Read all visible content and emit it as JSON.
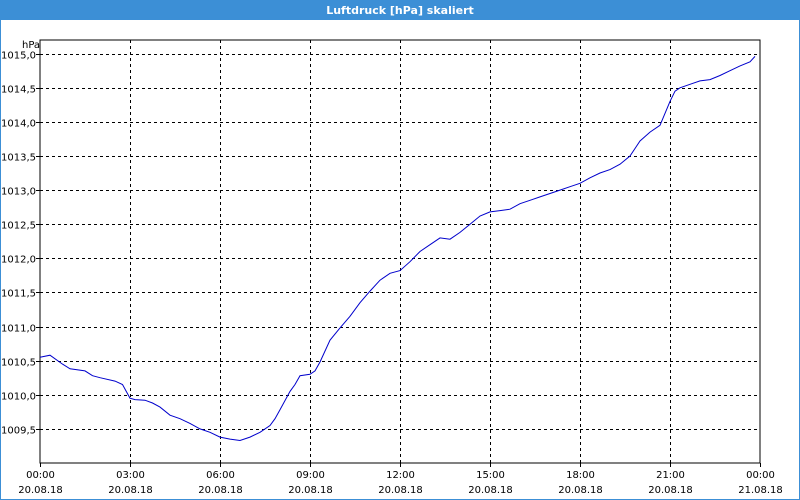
{
  "window": {
    "title": "Luftdruck [hPa] skaliert"
  },
  "chart_data": {
    "type": "line",
    "title": "Luftdruck [hPa] skaliert",
    "ylabel": "hPa",
    "xlabel": "",
    "ylim": [
      1009.0,
      1015.2
    ],
    "xlim": [
      "2018-08-20 00:00",
      "2018-08-21 00:00"
    ],
    "grid": true,
    "line_color": "#0000cc",
    "y_ticks": [
      "1009,5",
      "1010,0",
      "1010,5",
      "1011,0",
      "1011,5",
      "1012,0",
      "1012,5",
      "1013,0",
      "1013,5",
      "1014,0",
      "1014,5",
      "1015,0"
    ],
    "y_tick_values": [
      1009.5,
      1010.0,
      1010.5,
      1011.0,
      1011.5,
      1012.0,
      1012.5,
      1013.0,
      1013.5,
      1014.0,
      1014.5,
      1015.0
    ],
    "x_ticks": [
      {
        "time": "00:00",
        "date": "20.08.18"
      },
      {
        "time": "03:00",
        "date": "20.08.18"
      },
      {
        "time": "06:00",
        "date": "20.08.18"
      },
      {
        "time": "09:00",
        "date": "20.08.18"
      },
      {
        "time": "12:00",
        "date": "20.08.18"
      },
      {
        "time": "15:00",
        "date": "20.08.18"
      },
      {
        "time": "18:00",
        "date": "20.08.18"
      },
      {
        "time": "21:00",
        "date": "20.08.18"
      },
      {
        "time": "00:00",
        "date": "21.08.18"
      }
    ],
    "series": [
      {
        "x": [
          "00:00",
          "00:20",
          "00:45",
          "01:00",
          "01:30",
          "01:45",
          "02:00",
          "02:30",
          "02:45",
          "03:00",
          "03:10",
          "03:30",
          "03:45",
          "04:00",
          "04:20",
          "04:40",
          "05:00",
          "05:20",
          "05:40",
          "06:00",
          "06:20",
          "06:40",
          "07:00",
          "07:20",
          "07:40",
          "07:50",
          "08:00",
          "08:20",
          "08:30",
          "08:40",
          "09:00",
          "09:10",
          "09:20",
          "09:40",
          "10:00",
          "10:20",
          "10:40",
          "11:00",
          "11:20",
          "11:40",
          "12:00",
          "12:20",
          "12:40",
          "13:00",
          "13:20",
          "13:40",
          "14:00",
          "14:20",
          "14:40",
          "15:00",
          "15:20",
          "15:40",
          "16:00",
          "16:20",
          "16:40",
          "17:00",
          "17:20",
          "17:40",
          "18:00",
          "18:20",
          "18:40",
          "19:00",
          "19:20",
          "19:40",
          "20:00",
          "20:20",
          "20:40",
          "21:00",
          "21:10",
          "21:20",
          "21:40",
          "22:00",
          "22:20",
          "22:40",
          "23:00",
          "23:20",
          "23:40",
          "23:50"
        ],
        "y": [
          1010.55,
          1010.58,
          1010.45,
          1010.38,
          1010.35,
          1010.28,
          1010.25,
          1010.2,
          1010.15,
          1009.95,
          1009.93,
          1009.92,
          1009.88,
          1009.82,
          1009.7,
          1009.65,
          1009.58,
          1009.5,
          1009.45,
          1009.38,
          1009.35,
          1009.33,
          1009.38,
          1009.45,
          1009.55,
          1009.65,
          1009.78,
          1010.05,
          1010.15,
          1010.28,
          1010.3,
          1010.35,
          1010.48,
          1010.8,
          1010.98,
          1011.15,
          1011.35,
          1011.52,
          1011.68,
          1011.78,
          1011.82,
          1011.95,
          1012.1,
          1012.2,
          1012.3,
          1012.28,
          1012.38,
          1012.5,
          1012.62,
          1012.68,
          1012.7,
          1012.72,
          1012.8,
          1012.85,
          1012.9,
          1012.95,
          1013.0,
          1013.05,
          1013.1,
          1013.18,
          1013.25,
          1013.3,
          1013.38,
          1013.5,
          1013.72,
          1013.85,
          1013.95,
          1014.3,
          1014.45,
          1014.5,
          1014.55,
          1014.6,
          1014.62,
          1014.68,
          1014.75,
          1014.82,
          1014.88,
          1014.96
        ]
      }
    ]
  }
}
